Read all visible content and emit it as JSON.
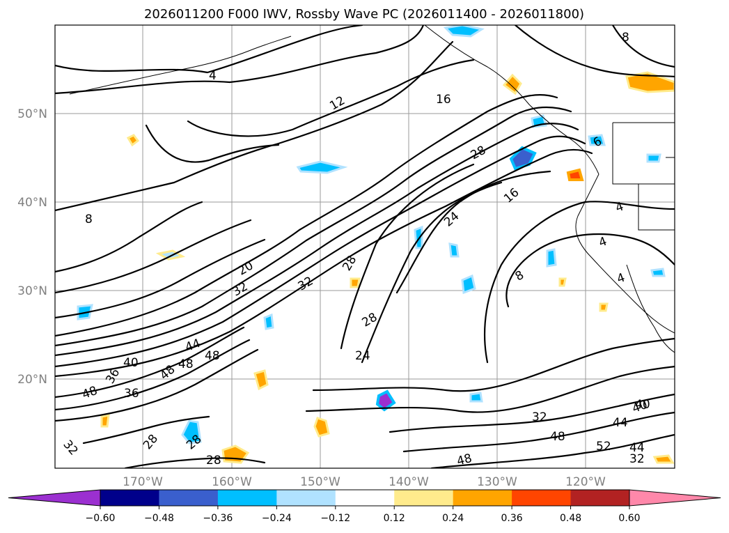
{
  "title": "2026011200 F000 IWV, Rossby Wave PC (2026011400 - 2026011800)",
  "map": {
    "lat_labels": [
      "50°N",
      "40°N",
      "30°N",
      "20°N"
    ],
    "lon_labels": [
      "170°W",
      "160°W",
      "150°W",
      "140°W",
      "130°W",
      "120°W"
    ],
    "contour_labels": [
      "8",
      "4",
      "12",
      "16",
      "8",
      "28",
      "16",
      "24",
      "40",
      "20",
      "32",
      "28",
      "32",
      "28",
      "44",
      "48",
      "48",
      "24",
      "48",
      "40",
      "36",
      "36",
      "48",
      "8",
      "4",
      "4",
      "4",
      "6",
      "32",
      "40",
      "44",
      "48",
      "52",
      "44",
      "32",
      "48",
      "32",
      "28",
      "28",
      "28"
    ]
  },
  "colorbar": {
    "ticks": [
      "−0.60",
      "−0.48",
      "−0.36",
      "−0.24",
      "−0.12",
      "0.12",
      "0.24",
      "0.36",
      "0.48",
      "0.60"
    ],
    "colors": [
      "#9b30d0",
      "#00008b",
      "#3a5fcd",
      "#00bfff",
      "#b0e2ff",
      "#ffffff",
      "#ffeb8c",
      "#ffa500",
      "#ff4500",
      "#b22222",
      "#ff88aa"
    ]
  },
  "colors": {
    "neg_light": "#b0e2ff",
    "neg_mid": "#00bfff",
    "neg_dark": "#3a5fcd",
    "neg_purple": "#9b30d0",
    "pos_light": "#ffeb8c",
    "pos_mid": "#ffa500",
    "pos_dark": "#ff4500"
  }
}
